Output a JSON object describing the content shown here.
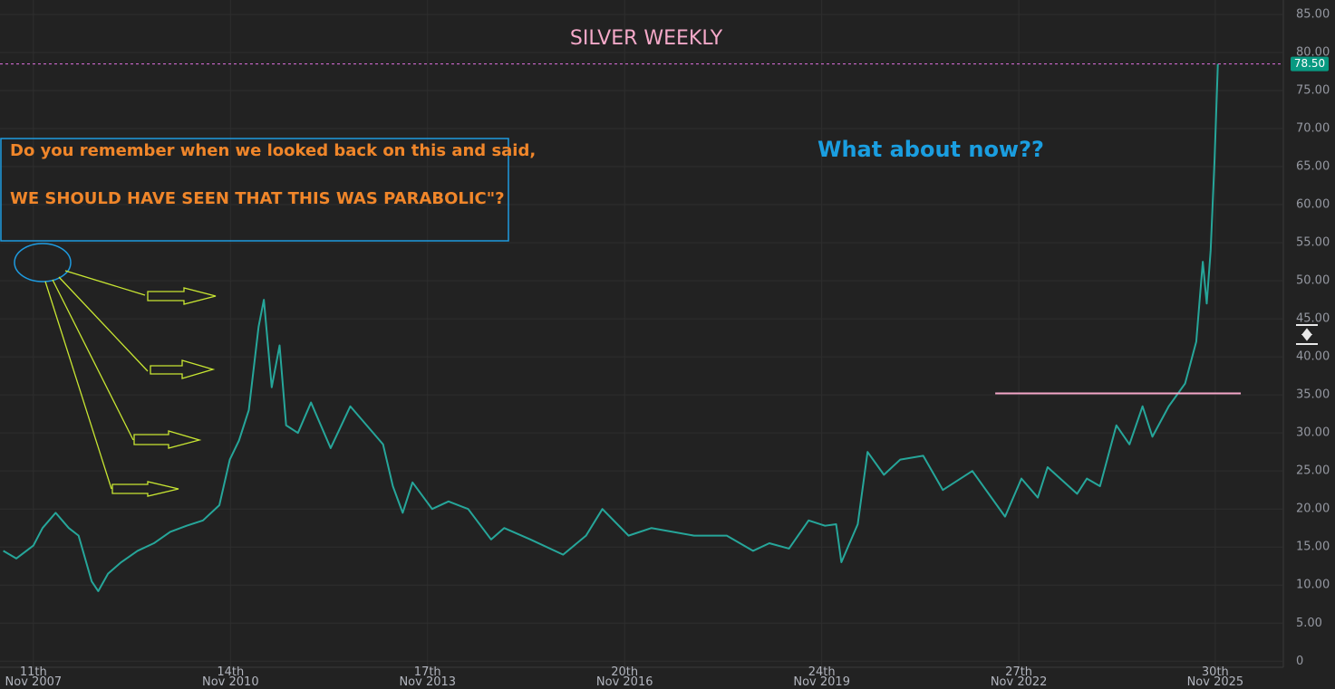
{
  "chart_data": {
    "type": "line",
    "title": "SILVER WEEKLY",
    "color": "#26a69a",
    "x": [
      2007.4,
      2007.6,
      2007.86,
      2008.0,
      2008.2,
      2008.4,
      2008.55,
      2008.75,
      2008.85,
      2009.0,
      2009.2,
      2009.45,
      2009.7,
      2009.95,
      2010.2,
      2010.45,
      2010.7,
      2010.86,
      2011.0,
      2011.15,
      2011.3,
      2011.38,
      2011.5,
      2011.62,
      2011.72,
      2011.9,
      2012.1,
      2012.4,
      2012.7,
      2012.95,
      2013.2,
      2013.35,
      2013.5,
      2013.65,
      2013.95,
      2014.2,
      2014.5,
      2014.85,
      2015.05,
      2015.45,
      2015.95,
      2016.3,
      2016.55,
      2016.95,
      2017.3,
      2017.95,
      2018.45,
      2018.85,
      2019.1,
      2019.4,
      2019.7,
      2019.95,
      2020.12,
      2020.2,
      2020.45,
      2020.6,
      2020.85,
      2021.1,
      2021.45,
      2021.75,
      2022.2,
      2022.7,
      2022.95,
      2023.2,
      2023.35,
      2023.8,
      2023.95,
      2024.15,
      2024.4,
      2024.6,
      2024.8,
      2024.95,
      2025.2,
      2025.45,
      2025.62,
      2025.72,
      2025.78,
      2025.84,
      2025.9,
      2025.95
    ],
    "values": [
      14.5,
      13.5,
      15.2,
      17.5,
      19.5,
      17.5,
      16.5,
      10.5,
      9.2,
      11.5,
      13.0,
      14.5,
      15.5,
      17.0,
      17.8,
      18.5,
      20.5,
      26.5,
      29.0,
      33.0,
      44.0,
      47.5,
      36.0,
      41.5,
      31.0,
      30.0,
      34.0,
      28.0,
      33.5,
      31.0,
      28.5,
      23.0,
      19.5,
      23.5,
      20.0,
      21.0,
      20.0,
      16.0,
      17.5,
      16.0,
      14.0,
      16.5,
      20.0,
      16.5,
      17.5,
      16.5,
      16.5,
      14.5,
      15.5,
      14.8,
      18.5,
      17.8,
      18.0,
      13.0,
      18.0,
      27.5,
      24.5,
      26.5,
      27.0,
      22.5,
      25.0,
      19.0,
      24.0,
      21.5,
      25.5,
      22.0,
      24.0,
      23.0,
      31.0,
      28.5,
      33.5,
      29.5,
      33.5,
      36.5,
      42.0,
      52.5,
      47.0,
      54.0,
      66.0,
      78.5
    ],
    "xlim": [
      2007.35,
      2026.95
    ],
    "xticks": [
      {
        "value": 2007.86,
        "label": "11th\nNov 2007"
      },
      {
        "value": 2010.87,
        "label": "14th\nNov 2010"
      },
      {
        "value": 2013.88,
        "label": "17th\nNov 2013"
      },
      {
        "value": 2016.89,
        "label": "20th\nNov 2016"
      },
      {
        "value": 2019.9,
        "label": "24th\nNov 2019"
      },
      {
        "value": 2022.91,
        "label": "27th\nNov 2022"
      },
      {
        "value": 2025.91,
        "label": "30th\nNov 2025"
      }
    ],
    "ylim": [
      -0.8,
      86.9
    ],
    "yticks": [
      0,
      {
        "value": 5,
        "label": "5.00"
      },
      {
        "value": 10,
        "label": "10.00"
      },
      {
        "value": 15,
        "label": "15.00"
      },
      {
        "value": 20,
        "label": "20.00"
      },
      {
        "value": 25,
        "label": "25.00"
      },
      {
        "value": 30,
        "label": "30.00"
      },
      {
        "value": 35,
        "label": "35.00"
      },
      {
        "value": 40,
        "label": "40.00"
      },
      {
        "value": 45,
        "label": "45.00"
      },
      {
        "value": 50,
        "label": "50.00"
      },
      {
        "value": 55,
        "label": "55.00"
      },
      {
        "value": 60,
        "label": "60.00"
      },
      {
        "value": 65,
        "label": "65.00"
      },
      {
        "value": 70,
        "label": "70.00"
      },
      {
        "value": 75,
        "label": "75.00"
      },
      {
        "value": 80,
        "label": "80.00"
      },
      {
        "value": 85,
        "label": "85.00"
      }
    ],
    "grid": true,
    "last_price": {
      "value": 78.5,
      "label": "78.50",
      "color": "#089981",
      "line_color": "#e070e0"
    },
    "level_line": {
      "value": 35.2,
      "x": [
        2022.55,
        2026.3
      ],
      "color": "#f4a6c8"
    },
    "annotations": {
      "box_text": [
        "Do you remember when we looked back on this and said,",
        "WE SHOULD HAVE SEEN THAT THIS WAS PARABOLIC\"?"
      ],
      "note": "What about now??"
    }
  }
}
